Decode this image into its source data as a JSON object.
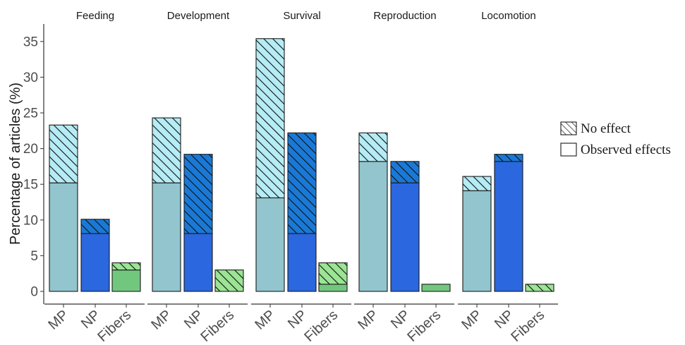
{
  "chart_data": {
    "type": "bar",
    "ylabel": "Percentage of articles (%)",
    "ylim": [
      0,
      36
    ],
    "yticks": [
      0,
      5,
      10,
      15,
      20,
      25,
      30,
      35
    ],
    "grid": false,
    "legend_position": "right",
    "categories": [
      "MP",
      "NP",
      "Fibers"
    ],
    "category_colors": {
      "MP": "#92c5ce",
      "NP": "#2b67df",
      "Fibers": "#72c77f"
    },
    "hatch_colors": {
      "MP": "#b5ecf5",
      "NP": "#1a79d6",
      "Fibers": "#9be494"
    },
    "legend": [
      {
        "pattern": "hatched",
        "label": "No effect"
      },
      {
        "pattern": "solid",
        "label": "Observed effects"
      }
    ],
    "facets": [
      {
        "title": "Feeding",
        "bars": [
          {
            "category": "MP",
            "observed_effects": 15.2,
            "no_effect": 8.1
          },
          {
            "category": "NP",
            "observed_effects": 8.1,
            "no_effect": 2.0
          },
          {
            "category": "Fibers",
            "observed_effects": 3.0,
            "no_effect": 1.0
          }
        ]
      },
      {
        "title": "Development",
        "bars": [
          {
            "category": "MP",
            "observed_effects": 15.2,
            "no_effect": 9.1
          },
          {
            "category": "NP",
            "observed_effects": 8.1,
            "no_effect": 11.1
          },
          {
            "category": "Fibers",
            "observed_effects": 0.0,
            "no_effect": 3.0
          }
        ]
      },
      {
        "title": "Survival",
        "bars": [
          {
            "category": "MP",
            "observed_effects": 13.1,
            "no_effect": 22.3
          },
          {
            "category": "NP",
            "observed_effects": 8.1,
            "no_effect": 14.1
          },
          {
            "category": "Fibers",
            "observed_effects": 1.0,
            "no_effect": 3.0
          }
        ]
      },
      {
        "title": "Reproduction",
        "bars": [
          {
            "category": "MP",
            "observed_effects": 18.2,
            "no_effect": 4.0
          },
          {
            "category": "NP",
            "observed_effects": 15.2,
            "no_effect": 3.0
          },
          {
            "category": "Fibers",
            "observed_effects": 1.0,
            "no_effect": 0.0
          }
        ]
      },
      {
        "title": "Locomotion",
        "bars": [
          {
            "category": "MP",
            "observed_effects": 14.1,
            "no_effect": 2.0
          },
          {
            "category": "NP",
            "observed_effects": 18.2,
            "no_effect": 1.0
          },
          {
            "category": "Fibers",
            "observed_effects": 0.0,
            "no_effect": 1.0
          }
        ]
      }
    ]
  }
}
